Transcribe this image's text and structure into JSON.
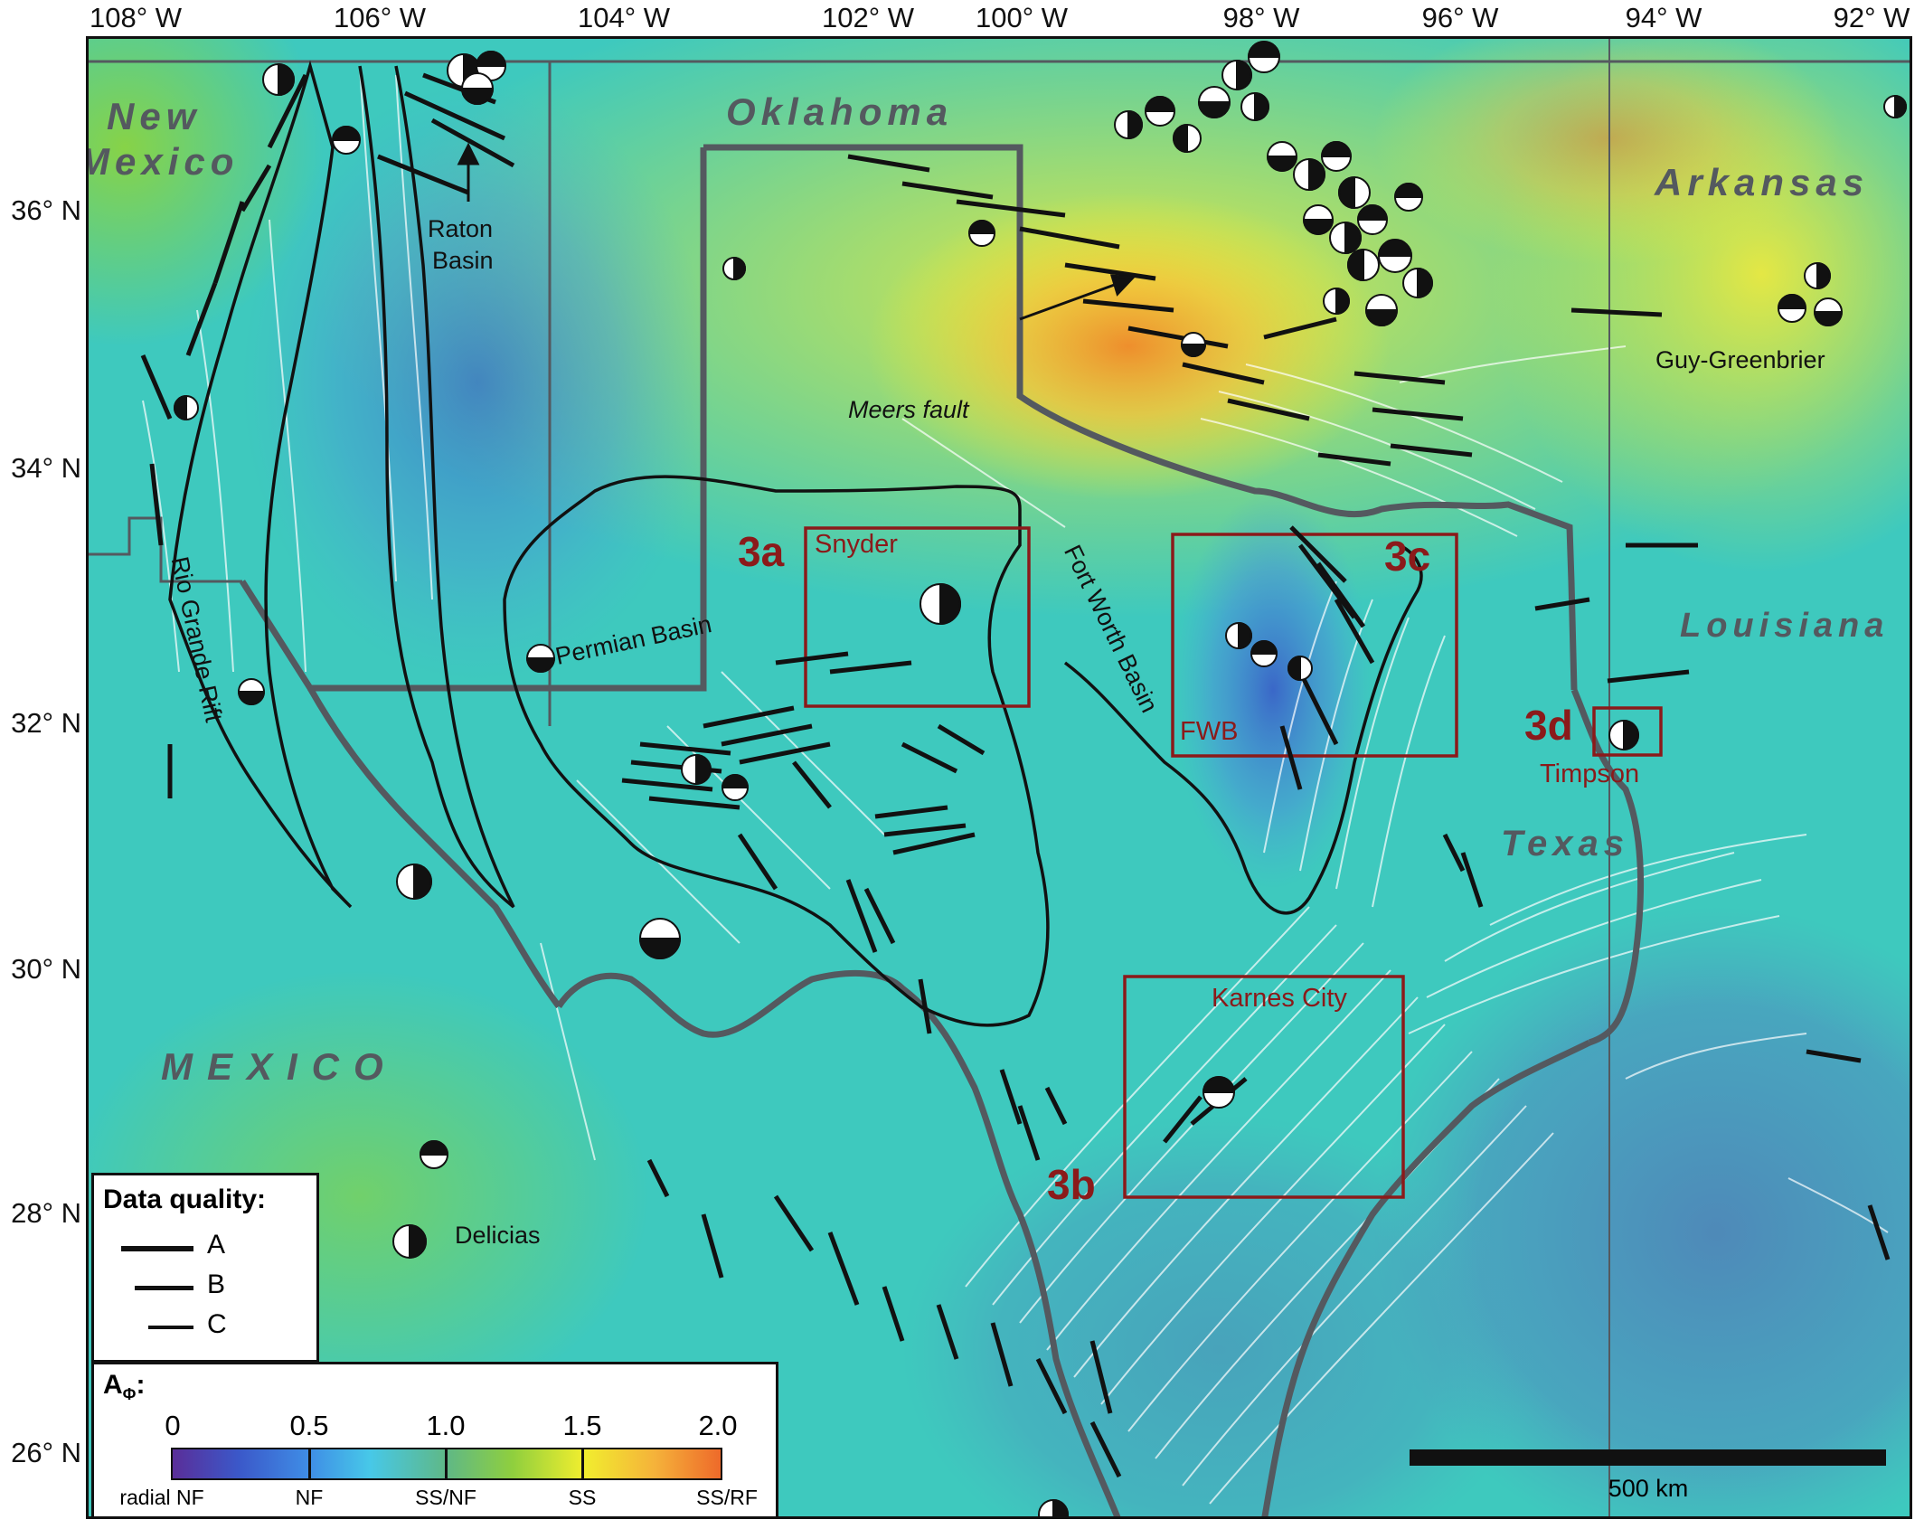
{
  "axes": {
    "longitude_labels": [
      "108° W",
      "106° W",
      "104° W",
      "102° W",
      "100° W",
      "98° W",
      "96° W",
      "94° W",
      "92° W"
    ],
    "latitude_labels": [
      "36° N",
      "34° N",
      "32° N",
      "30° N",
      "28° N",
      "26° N"
    ]
  },
  "labels": {
    "states": {
      "new_mexico_1": "New",
      "new_mexico_2": "Mexico",
      "oklahoma": "Oklahoma",
      "arkansas": "Arkansas",
      "louisiana": "Louisiana",
      "texas": "Texas",
      "mexico": "MEXICO"
    },
    "features": {
      "raton_1": "Raton",
      "raton_2": "Basin",
      "rio_grande_rift": "Rio Grande Rift",
      "permian_basin": "Permian Basin",
      "fort_worth_basin": "Fort Worth Basin",
      "meers_fault": "Meers fault",
      "guy_greenbrier": "Guy-Greenbrier",
      "delicias": "Delicias"
    },
    "boxes": {
      "box_3a": "3a",
      "snyder": "Snyder",
      "box_3b": "3b",
      "karnes_city": "Karnes City",
      "box_3c": "3c",
      "fwb": "FWB",
      "box_3d": "3d",
      "timpson": "Timpson"
    }
  },
  "legend_quality": {
    "title": "Data quality:",
    "items": [
      {
        "label": "A"
      },
      {
        "label": "B"
      },
      {
        "label": "C"
      }
    ]
  },
  "legend_color": {
    "title": "A",
    "title_sub": "Φ",
    "title_suffix": ":",
    "ticks": [
      "0",
      "0.5",
      "1.0",
      "1.5",
      "2.0"
    ],
    "categories": [
      "radial NF",
      "NF",
      "SS/NF",
      "SS",
      "SS/RF"
    ]
  },
  "scale_bar": {
    "label": "500 km"
  },
  "colors": {
    "box_outline": "#8b1a1a",
    "border_gray": "#54595f",
    "stress_bar": "#111111"
  }
}
